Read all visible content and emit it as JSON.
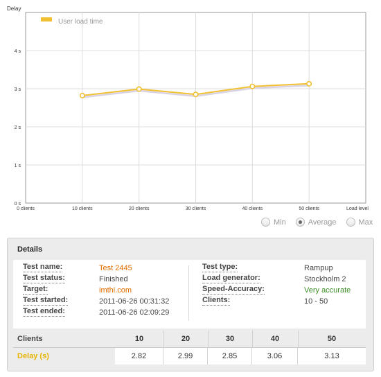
{
  "chart": {
    "y_axis_title": "Delay",
    "x_axis_title": "Load level",
    "legend_label": "User load time",
    "line_color": "#f0c030"
  },
  "chart_data": {
    "type": "line",
    "ylabel": "Delay",
    "xlabel": "Load level",
    "x_categories": [
      "0 clients",
      "10 clients",
      "20 clients",
      "30 clients",
      "40 clients",
      "50 clients"
    ],
    "y_ticks": [
      "0 s",
      "1 s",
      "2 s",
      "3 s",
      "4 s"
    ],
    "ylim": [
      0,
      5
    ],
    "grid": true,
    "legend": "top-left",
    "series": [
      {
        "name": "User load time",
        "x": [
          10,
          20,
          30,
          40,
          50
        ],
        "values": [
          2.82,
          2.99,
          2.85,
          3.06,
          3.13
        ],
        "color": "#f0c030"
      }
    ]
  },
  "aggregation": {
    "options": [
      "Min",
      "Average",
      "Max"
    ],
    "selected": "Average"
  },
  "details": {
    "title": "Details",
    "left": [
      {
        "label": "Test name:",
        "value": "Test 2445",
        "style": "orange"
      },
      {
        "label": "Test status:",
        "value": "Finished",
        "style": ""
      },
      {
        "label": "Target:",
        "value": "imthi.com",
        "style": "orange"
      },
      {
        "label": "Test started:",
        "value": "2011-06-26 00:31:32",
        "style": ""
      },
      {
        "label": "Test ended:",
        "value": "2011-06-26 02:09:29",
        "style": ""
      }
    ],
    "right": [
      {
        "label": "Test type:",
        "value": "Rampup",
        "style": ""
      },
      {
        "label": "Load generator:",
        "value": "Stockholm 2",
        "style": ""
      },
      {
        "label": "Speed-Accuracy:",
        "value": "Very accurate",
        "style": "green"
      },
      {
        "label": "Clients:",
        "value": "10 - 50",
        "style": ""
      }
    ]
  },
  "summary": {
    "row1_label": "Clients",
    "row2_label": "Delay (s)",
    "row2_label_color": "#e8b400",
    "clients": [
      "10",
      "20",
      "30",
      "40",
      "50"
    ],
    "delays": [
      "2.82",
      "2.99",
      "2.85",
      "3.06",
      "3.13"
    ]
  }
}
